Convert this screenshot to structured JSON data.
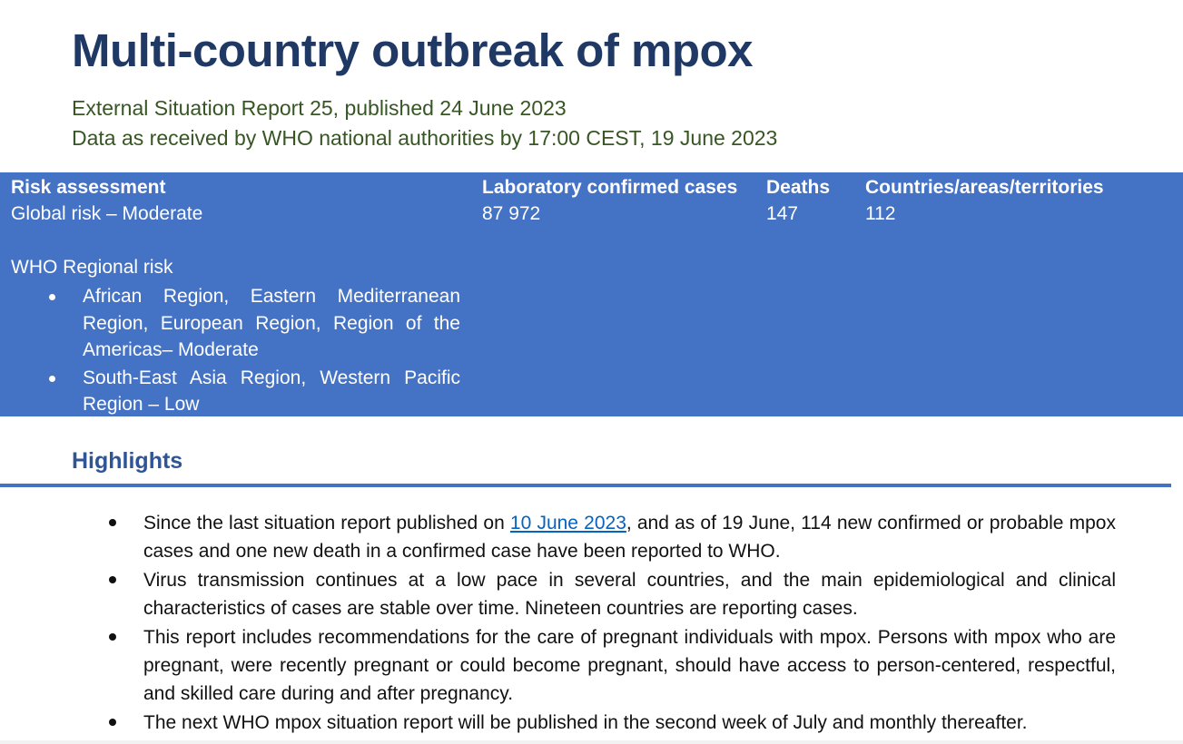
{
  "document": {
    "title": "Multi-country outbreak of mpox",
    "subtitle_line1": "External Situation Report 25, published 24 June 2023",
    "subtitle_line2": "Data as received by WHO national authorities by 17:00 CEST, 19 June 2023"
  },
  "summary": {
    "risk_header": "Risk assessment",
    "global_risk": "Global risk – Moderate",
    "cases_header": "Laboratory confirmed cases",
    "cases_value": "87 972",
    "deaths_header": "Deaths",
    "deaths_value": "147",
    "countries_header": "Countries/areas/territories",
    "countries_value": "112",
    "regional_label": "WHO Regional risk",
    "regional_items": [
      "African Region, Eastern Mediterranean Region, European Region, Region of the Americas– Moderate",
      "South-East Asia Region, Western Pacific Region – Low"
    ]
  },
  "highlights": {
    "heading": "Highlights",
    "item1_before_link": "Since the last situation report published on ",
    "item1_link": "10 June 2023",
    "item1_after_link": ", and as of 19 June, 114 new confirmed or probable mpox cases and one new death in a confirmed case have been reported to WHO.",
    "item2": "Virus transmission continues at a low pace in several countries, and the main epidemiological and clinical characteristics of cases are stable over time. Nineteen countries are reporting cases.",
    "item3": "This report includes recommendations for the care of pregnant individuals with mpox. Persons with mpox who are pregnant, were recently pregnant or could become pregnant, should have access to person-centered, respectful, and skilled care during and after pregnancy.",
    "item4": "The next WHO mpox situation report will be published in the second week of July and monthly thereafter."
  },
  "colors": {
    "title": "#1f3864",
    "subtitle": "#375623",
    "summary_band": "#4472c4",
    "highlights_heading": "#2f5597",
    "link": "#0563c1"
  }
}
